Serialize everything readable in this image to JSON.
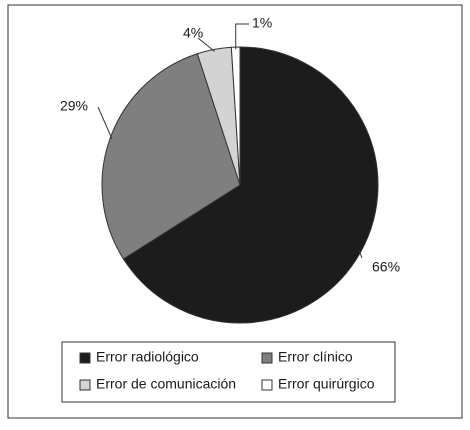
{
  "chart_data": {
    "type": "pie",
    "categories": [
      "Error radiológico",
      "Error clínico",
      "Error de comunicación",
      "Error quirúrgico"
    ],
    "values": [
      66,
      29,
      4,
      1
    ],
    "value_labels": [
      "66%",
      "29%",
      "4%",
      "1%"
    ],
    "colors": [
      "#1c1c1c",
      "#7f7f7f",
      "#d3d3d3",
      "#ffffff"
    ]
  }
}
